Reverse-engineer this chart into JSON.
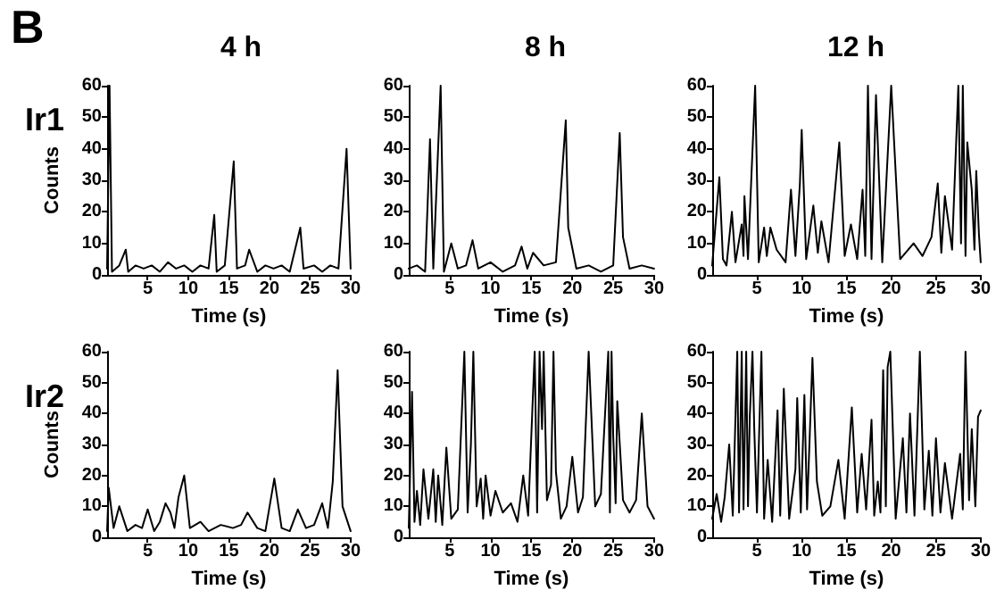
{
  "chart_data": [
    {
      "type": "line",
      "title": "4 h",
      "ylabel": "Counts",
      "xlabel": "Time (s)",
      "annotations": [
        "B",
        "Ir1"
      ],
      "xlim": [
        0,
        30
      ],
      "xticks": [
        5,
        10,
        15,
        20,
        25,
        30
      ],
      "ylim": [
        0,
        60
      ],
      "yticks": [
        0,
        10,
        20,
        30,
        40,
        50,
        60
      ],
      "grid": false,
      "marker": "none",
      "line_style": "solid",
      "x": [
        0,
        0.3,
        0.6,
        1.5,
        2.3,
        2.6,
        3.5,
        4.5,
        5.5,
        6.5,
        7.5,
        8.5,
        9.5,
        10.5,
        11.5,
        12.5,
        13.2,
        13.5,
        14.5,
        15.6,
        16,
        17,
        17.5,
        18.5,
        19.5,
        20.5,
        21.5,
        22.5,
        23.8,
        24.2,
        25.5,
        26.5,
        27.5,
        28.5,
        29.5,
        30
      ],
      "series": [
        {
          "color": "#000000",
          "values": [
            2,
            60,
            1,
            3,
            8,
            1,
            3,
            2,
            3,
            1,
            4,
            2,
            3,
            1,
            3,
            2,
            19,
            1,
            3,
            36,
            2,
            3,
            8,
            1,
            3,
            2,
            3,
            1,
            15,
            2,
            3,
            1,
            3,
            2,
            40,
            2
          ]
        }
      ]
    },
    {
      "type": "line",
      "title": "8 h",
      "xlabel": "Time (s)",
      "xlim": [
        0,
        30
      ],
      "xticks": [
        5,
        10,
        15,
        20,
        25,
        30
      ],
      "ylim": [
        0,
        60
      ],
      "yticks": [
        0,
        10,
        20,
        30,
        40,
        50,
        60
      ],
      "grid": false,
      "marker": "none",
      "line_style": "solid",
      "x": [
        0,
        1,
        2,
        2.6,
        3,
        3.9,
        4.3,
        5.2,
        6,
        7,
        7.8,
        8.5,
        10,
        11.5,
        13,
        13.8,
        14.5,
        15.2,
        16.5,
        18,
        19.2,
        19.5,
        20.5,
        22,
        23.5,
        25,
        25.8,
        26.2,
        27,
        28.5,
        30
      ],
      "series": [
        {
          "color": "#000000",
          "values": [
            2,
            3,
            1,
            43,
            2,
            60,
            1,
            10,
            2,
            3,
            11,
            2,
            4,
            1,
            3,
            9,
            2,
            7,
            3,
            4,
            49,
            15,
            2,
            3,
            1,
            3,
            45,
            12,
            2,
            3,
            2
          ]
        }
      ]
    },
    {
      "type": "line",
      "title": "12 h",
      "xlabel": "Time (s)",
      "xlim": [
        0,
        30
      ],
      "xticks": [
        5,
        10,
        15,
        20,
        25,
        30
      ],
      "ylim": [
        0,
        60
      ],
      "yticks": [
        0,
        10,
        20,
        30,
        40,
        50,
        60
      ],
      "grid": false,
      "marker": "none",
      "line_style": "solid",
      "x": [
        0,
        0.8,
        1.2,
        1.6,
        2.2,
        2.6,
        3.3,
        3.5,
        3.6,
        4,
        4.8,
        5.2,
        5.8,
        6.1,
        6.5,
        7.2,
        8.2,
        8.8,
        9.3,
        9.8,
        10,
        10.5,
        11.3,
        11.8,
        12.2,
        13,
        14.2,
        14.8,
        15.5,
        16.2,
        16.8,
        17.1,
        17.4,
        17.8,
        18.3,
        19,
        20,
        21,
        22.5,
        23.5,
        24.5,
        25.2,
        25.6,
        26,
        26.8,
        27.5,
        27.8,
        28,
        28.3,
        28.5,
        29,
        29.3,
        29.5,
        29.8,
        30
      ],
      "series": [
        {
          "color": "#000000",
          "values": [
            3,
            31,
            5,
            3,
            20,
            4,
            16,
            6,
            25,
            5,
            60,
            4,
            15,
            6,
            15,
            8,
            4,
            27,
            6,
            29,
            46,
            5,
            22,
            7,
            17,
            4,
            42,
            6,
            16,
            5,
            27,
            6,
            60,
            5,
            57,
            4,
            60,
            5,
            10,
            6,
            12,
            29,
            7,
            25,
            8,
            60,
            10,
            60,
            6,
            42,
            27,
            8,
            33,
            13,
            4
          ]
        }
      ]
    },
    {
      "type": "line",
      "ylabel": "Counts",
      "xlabel": "Time (s)",
      "annotations": [
        "Ir2"
      ],
      "xlim": [
        0,
        30
      ],
      "xticks": [
        5,
        10,
        15,
        20,
        25,
        30
      ],
      "ylim": [
        0,
        60
      ],
      "yticks": [
        0,
        10,
        20,
        30,
        40,
        50,
        60
      ],
      "grid": false,
      "marker": "none",
      "line_style": "solid",
      "x": [
        0,
        0.2,
        0.8,
        1.5,
        2.5,
        3.5,
        4.3,
        5,
        5.8,
        6.5,
        7.2,
        7.8,
        8.3,
        8.8,
        9.5,
        10.2,
        11.5,
        12.5,
        14,
        15.5,
        16.5,
        17.3,
        18.5,
        19.5,
        20.6,
        21.5,
        22.5,
        23.5,
        24.5,
        25.5,
        26.5,
        27.2,
        27.8,
        28.4,
        29,
        30
      ],
      "series": [
        {
          "color": "#000000",
          "values": [
            2,
            16,
            3,
            10,
            2,
            4,
            3,
            9,
            2,
            5,
            11,
            8,
            3,
            13,
            20,
            3,
            5,
            2,
            4,
            3,
            4,
            8,
            3,
            2,
            19,
            3,
            2,
            9,
            3,
            4,
            11,
            3,
            18,
            54,
            10,
            2
          ]
        }
      ]
    },
    {
      "type": "line",
      "xlabel": "Time (s)",
      "xlim": [
        0,
        30
      ],
      "xticks": [
        5,
        10,
        15,
        20,
        25,
        30
      ],
      "ylim": [
        0,
        60
      ],
      "yticks": [
        0,
        10,
        20,
        30,
        40,
        50,
        60
      ],
      "grid": false,
      "marker": "none",
      "line_style": "solid",
      "x": [
        0,
        0.4,
        0.7,
        1,
        1.4,
        1.8,
        2.4,
        3,
        3.3,
        3.6,
        4.1,
        4.6,
        5.2,
        6,
        6.8,
        7.2,
        7.6,
        7.9,
        8.3,
        8.8,
        9.1,
        9.4,
        10,
        10.6,
        11.5,
        12.5,
        13.3,
        14,
        14.6,
        15.4,
        15.7,
        16,
        16.3,
        16.5,
        16.9,
        17.4,
        17.7,
        18,
        18.6,
        19.3,
        20,
        20.7,
        21.3,
        22,
        22.8,
        23.5,
        24.4,
        24.6,
        24.8,
        25,
        25.3,
        25.5,
        26.2,
        27,
        27.8,
        28.5,
        29.2,
        30
      ],
      "series": [
        {
          "color": "#000000",
          "values": [
            3,
            47,
            5,
            15,
            4,
            22,
            6,
            22,
            5,
            20,
            4,
            29,
            6,
            9,
            60,
            8,
            30,
            60,
            10,
            19,
            6,
            20,
            7,
            15,
            8,
            11,
            5,
            20,
            7,
            60,
            8,
            60,
            35,
            60,
            12,
            17,
            60,
            21,
            6,
            10,
            26,
            8,
            13,
            60,
            10,
            14,
            60,
            8,
            60,
            33,
            11,
            44,
            12,
            8,
            12,
            40,
            10,
            6
          ]
        }
      ]
    },
    {
      "type": "line",
      "xlabel": "Time (s)",
      "xlim": [
        0,
        30
      ],
      "xticks": [
        5,
        10,
        15,
        20,
        25,
        30
      ],
      "ylim": [
        0,
        60
      ],
      "yticks": [
        0,
        10,
        20,
        30,
        40,
        50,
        60
      ],
      "grid": false,
      "marker": "none",
      "line_style": "solid",
      "x": [
        0,
        0.5,
        1,
        1.4,
        1.9,
        2.3,
        2.8,
        3,
        3.3,
        3.5,
        3.8,
        4,
        4.2,
        4.5,
        4.7,
        5,
        5.5,
        5.8,
        6.2,
        6.7,
        7.3,
        7.6,
        8,
        8.6,
        9.3,
        9.5,
        9.9,
        10.3,
        10.6,
        10.9,
        11.2,
        11.7,
        12.3,
        13.2,
        14.1,
        14.8,
        15.6,
        16.2,
        16.7,
        17.2,
        17.8,
        18.1,
        18.5,
        18.8,
        19.1,
        19.4,
        19.6,
        19.9,
        20.5,
        21.3,
        21.7,
        22.1,
        22.6,
        23.2,
        23.7,
        24.2,
        24.6,
        25,
        25.5,
        26,
        26.8,
        27.7,
        28,
        28.3,
        28.7,
        29,
        29.4,
        29.7,
        30
      ],
      "series": [
        {
          "color": "#000000",
          "values": [
            6,
            14,
            5,
            13,
            30,
            7,
            60,
            8,
            60,
            9,
            60,
            10,
            39,
            60,
            35,
            8,
            60,
            6,
            25,
            5,
            41,
            7,
            48,
            6,
            22,
            45,
            8,
            46,
            9,
            33,
            58,
            18,
            7,
            10,
            25,
            6,
            42,
            8,
            27,
            9,
            38,
            7,
            18,
            8,
            54,
            10,
            55,
            60,
            6,
            32,
            8,
            40,
            7,
            60,
            9,
            28,
            7,
            32,
            8,
            24,
            6,
            27,
            9,
            60,
            12,
            35,
            10,
            39,
            41
          ]
        }
      ]
    }
  ]
}
